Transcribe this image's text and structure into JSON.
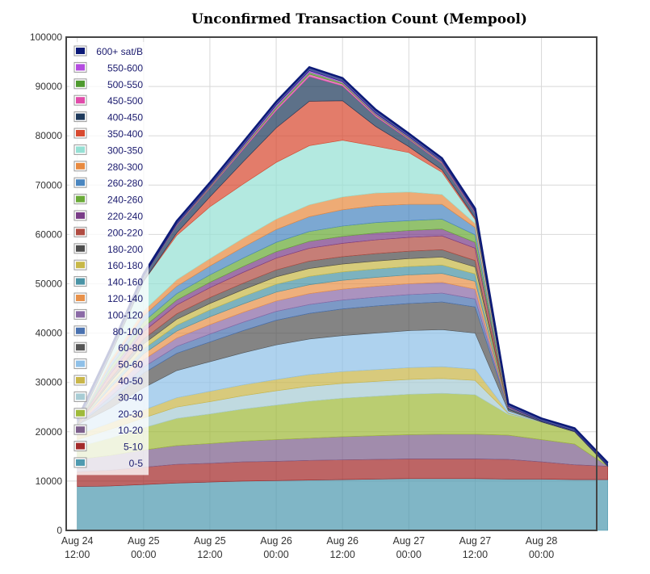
{
  "chart_data": {
    "type": "area",
    "title": "Unconfirmed Transaction Count (Mempool)",
    "xlabel": "",
    "ylabel": "",
    "ylim": [
      0,
      100000
    ],
    "yticks": [
      0,
      10000,
      20000,
      30000,
      40000,
      50000,
      60000,
      70000,
      80000,
      90000,
      100000
    ],
    "ytick_labels": [
      "0",
      "10000",
      "20000",
      "30000",
      "40000",
      "50000",
      "60000",
      "70000",
      "80000",
      "90000",
      "100000"
    ],
    "x": [
      0,
      6,
      12,
      18,
      24,
      30,
      36,
      42,
      48,
      54,
      60,
      66,
      72,
      78,
      84,
      90,
      96
    ],
    "xlim": [
      -2,
      94
    ],
    "xticks": [
      {
        "x": 0,
        "line1": "Aug 24",
        "line2": "12:00"
      },
      {
        "x": 12,
        "line1": "Aug 25",
        "line2": "00:00"
      },
      {
        "x": 24,
        "line1": "Aug 25",
        "line2": "12:00"
      },
      {
        "x": 36,
        "line1": "Aug 26",
        "line2": "00:00"
      },
      {
        "x": 48,
        "line1": "Aug 26",
        "line2": "12:00"
      },
      {
        "x": 60,
        "line1": "Aug 27",
        "line2": "00:00"
      },
      {
        "x": 72,
        "line1": "Aug 27",
        "line2": "12:00"
      },
      {
        "x": 84,
        "line1": "Aug 28",
        "line2": "00:00"
      }
    ],
    "grid": true,
    "stacked": true,
    "legend_position": "top-left",
    "series": [
      {
        "name": "0-5",
        "color": "#4f9ab0",
        "values": [
          8900,
          9000,
          9300,
          9600,
          9800,
          10000,
          10100,
          10200,
          10300,
          10400,
          10500,
          10500,
          10500,
          10400,
          10400,
          10300,
          10300
        ]
      },
      {
        "name": "5-10",
        "color": "#a32a2a",
        "values": [
          3000,
          3200,
          3500,
          3800,
          3800,
          3900,
          3900,
          4000,
          4000,
          4000,
          4000,
          4000,
          4000,
          4000,
          3500,
          3000,
          2700
        ]
      },
      {
        "name": "10-20",
        "color": "#7d5f8c",
        "values": [
          2500,
          3000,
          3500,
          3800,
          4000,
          4200,
          4400,
          4500,
          4700,
          4800,
          4900,
          5000,
          5000,
          4900,
          4500,
          4200,
          0
        ]
      },
      {
        "name": "20-30",
        "color": "#9fba3a",
        "values": [
          2500,
          3500,
          4500,
          5500,
          6000,
          6500,
          7000,
          7500,
          7800,
          8000,
          8200,
          8300,
          8000,
          4200,
          3600,
          2500,
          0
        ]
      },
      {
        "name": "30-40",
        "color": "#a8ccd4",
        "values": [
          1500,
          1800,
          2000,
          2300,
          2500,
          2700,
          2900,
          3000,
          3000,
          3000,
          3000,
          3000,
          2900,
          200,
          0,
          0,
          0
        ]
      },
      {
        "name": "40-50",
        "color": "#c9b64a",
        "values": [
          1000,
          1300,
          1600,
          1900,
          2100,
          2200,
          2300,
          2400,
          2400,
          2400,
          2400,
          2400,
          2300,
          150,
          0,
          0,
          0
        ]
      },
      {
        "name": "50-60",
        "color": "#8fc0e8",
        "values": [
          2000,
          3000,
          4500,
          5500,
          6000,
          6500,
          7000,
          7200,
          7300,
          7400,
          7500,
          7500,
          7300,
          400,
          0,
          0,
          0
        ]
      },
      {
        "name": "60-80",
        "color": "#555555",
        "values": [
          0,
          1500,
          3000,
          3500,
          4000,
          4500,
          5000,
          5200,
          5400,
          5500,
          5500,
          5600,
          5300,
          300,
          0,
          0,
          0
        ]
      },
      {
        "name": "80-100",
        "color": "#4a72b0",
        "values": [
          0,
          800,
          1200,
          1400,
          1600,
          1700,
          1800,
          1800,
          1800,
          1800,
          1800,
          1800,
          1600,
          0,
          0,
          0,
          0
        ]
      },
      {
        "name": "100-120",
        "color": "#8b6aa6",
        "values": [
          0,
          1000,
          1500,
          1700,
          1900,
          2000,
          2100,
          2200,
          2200,
          2200,
          2200,
          2200,
          2000,
          0,
          0,
          0,
          0
        ]
      },
      {
        "name": "120-140",
        "color": "#e8914a",
        "values": [
          0,
          800,
          1200,
          1400,
          1600,
          1700,
          1800,
          1800,
          1800,
          1800,
          1800,
          1800,
          1600,
          0,
          0,
          0,
          0
        ]
      },
      {
        "name": "140-160",
        "color": "#4a94a6",
        "values": [
          0,
          600,
          1000,
          1200,
          1400,
          1500,
          1600,
          1700,
          1700,
          1700,
          1700,
          1700,
          1500,
          0,
          0,
          0,
          0
        ]
      },
      {
        "name": "160-180",
        "color": "#c8b848",
        "values": [
          0,
          600,
          1000,
          1200,
          1300,
          1400,
          1500,
          1600,
          1600,
          1600,
          1600,
          1600,
          1400,
          0,
          0,
          0,
          0
        ]
      },
      {
        "name": "180-200",
        "color": "#4d4d4d",
        "values": [
          0,
          600,
          1000,
          1100,
          1200,
          1300,
          1400,
          1500,
          1500,
          1500,
          1500,
          1500,
          1300,
          0,
          0,
          0,
          0
        ]
      },
      {
        "name": "200-220",
        "color": "#b04c42",
        "values": [
          0,
          1000,
          1500,
          1800,
          2000,
          2200,
          2400,
          2600,
          2700,
          2800,
          2800,
          2800,
          2500,
          0,
          0,
          0,
          0
        ]
      },
      {
        "name": "220-240",
        "color": "#7a3d88",
        "values": [
          0,
          600,
          900,
          1000,
          1100,
          1200,
          1300,
          1400,
          1400,
          1400,
          1400,
          1400,
          1200,
          0,
          0,
          0,
          0
        ]
      },
      {
        "name": "240-260",
        "color": "#6aaa38",
        "values": [
          0,
          800,
          1100,
          1300,
          1500,
          1700,
          1900,
          2000,
          2100,
          2100,
          2000,
          2000,
          1500,
          0,
          0,
          0,
          0
        ]
      },
      {
        "name": "260-280",
        "color": "#4a86c0",
        "values": [
          0,
          800,
          1200,
          1500,
          1800,
          2200,
          2600,
          3000,
          3300,
          3400,
          3300,
          3000,
          1500,
          0,
          0,
          0,
          0
        ]
      },
      {
        "name": "280-300",
        "color": "#e88a40",
        "values": [
          0,
          600,
          1000,
          1300,
          1500,
          1800,
          2100,
          2400,
          2600,
          2600,
          2500,
          2000,
          800,
          0,
          0,
          0,
          0
        ]
      },
      {
        "name": "300-350",
        "color": "#96e0d4",
        "values": [
          0,
          1000,
          6000,
          9000,
          10500,
          11000,
          11500,
          12000,
          11500,
          9500,
          8000,
          4500,
          800,
          0,
          0,
          0,
          0
        ]
      },
      {
        "name": "350-400",
        "color": "#d84a30",
        "values": [
          0,
          0,
          0,
          500,
          2000,
          4500,
          7000,
          9000,
          8000,
          4000,
          1200,
          500,
          300,
          0,
          0,
          0,
          0
        ]
      },
      {
        "name": "400-450",
        "color": "#1e3a5c",
        "values": [
          600,
          800,
          1000,
          1500,
          1800,
          2500,
          3500,
          5000,
          3000,
          2000,
          1500,
          1300,
          1000,
          400,
          200,
          200,
          200
        ]
      },
      {
        "name": "450-500",
        "color": "#e04caa",
        "values": [
          0,
          0,
          0,
          100,
          200,
          300,
          400,
          500,
          400,
          300,
          200,
          200,
          150,
          100,
          0,
          0,
          0
        ]
      },
      {
        "name": "500-550",
        "color": "#4e9a2e",
        "values": [
          0,
          0,
          0,
          100,
          200,
          300,
          400,
          400,
          300,
          200,
          200,
          150,
          100,
          50,
          0,
          0,
          0
        ]
      },
      {
        "name": "550-600",
        "color": "#b44ce0",
        "values": [
          0,
          0,
          0,
          100,
          100,
          200,
          300,
          300,
          200,
          200,
          150,
          100,
          100,
          50,
          0,
          0,
          0
        ]
      },
      {
        "name": "600+ sat/B",
        "color": "#0c1a78",
        "values": [
          500,
          500,
          500,
          600,
          600,
          700,
          700,
          700,
          700,
          700,
          600,
          600,
          600,
          500,
          500,
          500,
          500
        ]
      }
    ]
  }
}
